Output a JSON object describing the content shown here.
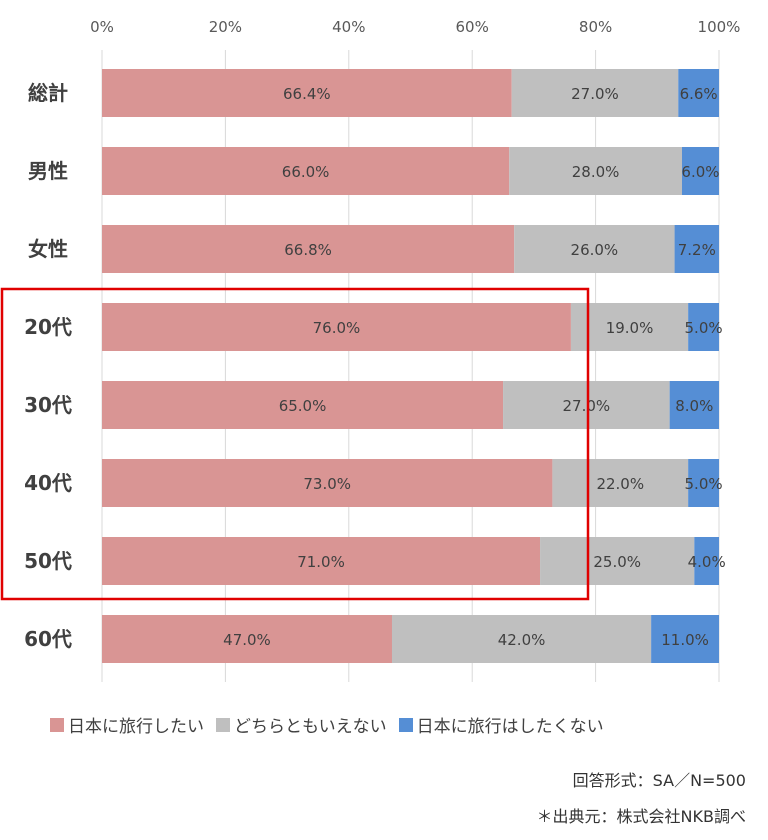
{
  "chart_data": {
    "type": "bar",
    "orientation": "horizontal",
    "stacked": "percent",
    "x_ticks": [
      "0%",
      "20%",
      "40%",
      "60%",
      "80%",
      "100%"
    ],
    "xlim": [
      0,
      100
    ],
    "categories": [
      "総計",
      "男性",
      "女性",
      "20代",
      "30代",
      "40代",
      "50代",
      "60代"
    ],
    "series": [
      {
        "name": "日本に旅行したい",
        "color": "#d99594",
        "values": [
          66.4,
          66.0,
          66.8,
          76.0,
          65.0,
          73.0,
          71.0,
          47.0
        ],
        "labels": [
          "66.4%",
          "66.0%",
          "66.8%",
          "76.0%",
          "65.0%",
          "73.0%",
          "71.0%",
          "47.0%"
        ]
      },
      {
        "name": "どちらともいえない",
        "color": "#bfbfbf",
        "values": [
          27.0,
          28.0,
          26.0,
          19.0,
          27.0,
          22.0,
          25.0,
          42.0
        ],
        "labels": [
          "27.0%",
          "28.0%",
          "26.0%",
          "19.0%",
          "27.0%",
          "22.0%",
          "25.0%",
          "42.0%"
        ]
      },
      {
        "name": "日本に旅行はしたくない",
        "color": "#558ed5",
        "values": [
          6.6,
          6.0,
          7.2,
          5.0,
          8.0,
          5.0,
          4.0,
          11.0
        ],
        "labels": [
          "6.6%",
          "6.0%",
          "7.2%",
          "5.0%",
          "8.0%",
          "5.0%",
          "4.0%",
          "11.0%"
        ]
      }
    ],
    "highlight": {
      "categories": [
        "20代",
        "30代",
        "40代",
        "50代"
      ],
      "color": "#e00000"
    },
    "grid": true,
    "legend_position": "bottom"
  },
  "notes": {
    "format": "回答形式：SA／N=500",
    "source": "＊出典元：株式会社NKB調べ"
  }
}
